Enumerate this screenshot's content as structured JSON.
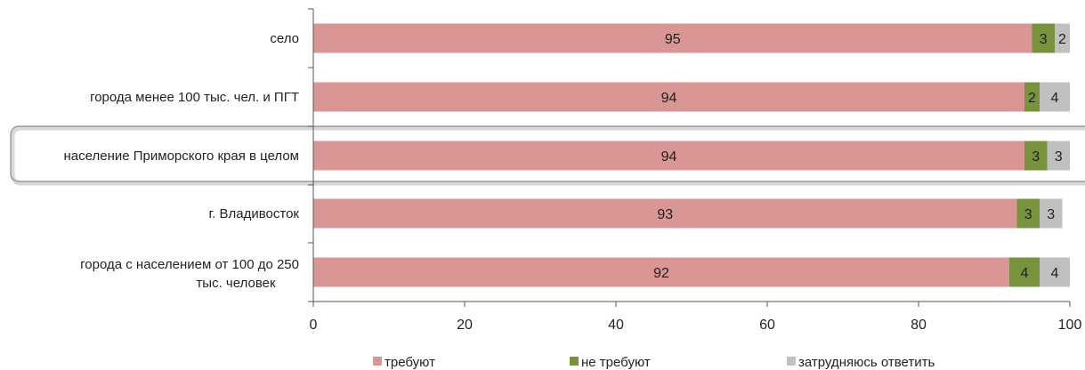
{
  "chart_data": {
    "type": "bar",
    "orientation": "horizontal",
    "stacked": true,
    "categories": [
      "село",
      "города менее 100 тыс. чел. и ПГТ",
      "население Приморского края в целом",
      "г. Владивосток",
      "города с населением от 100 до 250 тыс. человек"
    ],
    "highlighted_category": "население Приморского края в целом",
    "series": [
      {
        "name": "требуют",
        "values": [
          95,
          94,
          94,
          93,
          92
        ],
        "color": "#d99694"
      },
      {
        "name": "не требуют",
        "values": [
          3,
          2,
          3,
          3,
          4
        ],
        "color": "#77933c"
      },
      {
        "name": "затрудняюсь ответить",
        "values": [
          2,
          4,
          3,
          3,
          4
        ],
        "color": "#c0c0c0"
      }
    ],
    "xlim": [
      0,
      100
    ],
    "xticks": [
      0,
      20,
      40,
      60,
      80,
      100
    ],
    "grid": false,
    "legend_position": "bottom"
  }
}
